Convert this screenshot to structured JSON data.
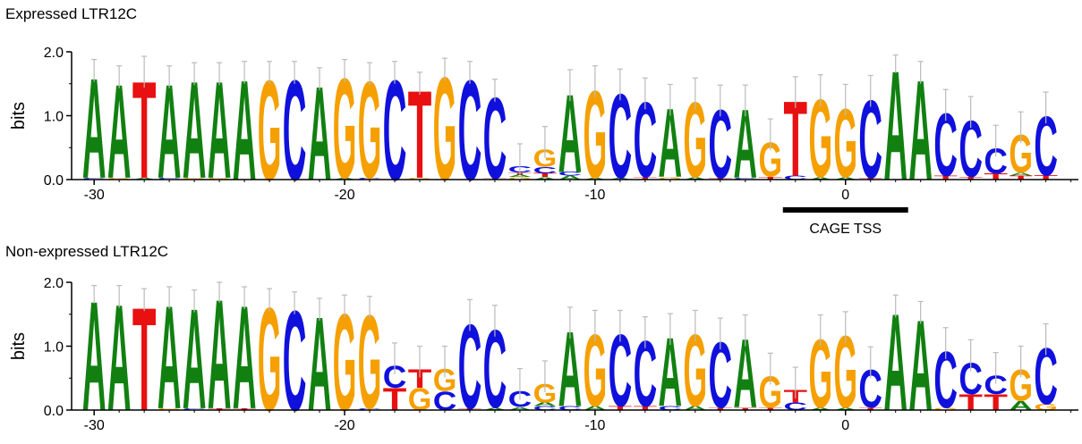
{
  "colors": {
    "A": "#118011",
    "C": "#1010dd",
    "G": "#f5a000",
    "T": "#e81010",
    "axis": "#000000",
    "errorbar": "#bbbbbb"
  },
  "chart_data": [
    {
      "type": "sequence-logo",
      "title": "Expressed LTR12C",
      "ylabel": "bits",
      "ylim": [
        0,
        2
      ],
      "yticks": [
        "0.0",
        "1.0",
        "2.0"
      ],
      "xlim": [
        -30.9,
        9.3
      ],
      "xticks": [
        -30,
        -20,
        -10,
        0
      ],
      "xtick_labels": [
        "-30",
        "-20",
        "-10",
        "0"
      ],
      "annotation": {
        "label": "CAGE TSS",
        "x_start": -2.5,
        "x_end": 2.5
      },
      "positions": [
        {
          "x": -30,
          "stack": [
            [
              "C",
              0.03
            ],
            [
              "A",
              1.6
            ]
          ],
          "err": 0.25
        },
        {
          "x": -29,
          "stack": [
            [
              "G",
              0.03
            ],
            [
              "A",
              1.5
            ]
          ],
          "err": 0.25
        },
        {
          "x": -28,
          "stack": [
            [
              "A",
              0.03
            ],
            [
              "T",
              1.55
            ]
          ],
          "err": 0.35
        },
        {
          "x": -27,
          "stack": [
            [
              "C",
              0.03
            ],
            [
              "A",
              1.5
            ]
          ],
          "err": 0.25
        },
        {
          "x": -26,
          "stack": [
            [
              "G",
              0.03
            ],
            [
              "A",
              1.55
            ]
          ],
          "err": 0.25
        },
        {
          "x": -25,
          "stack": [
            [
              "G",
              0.03
            ],
            [
              "A",
              1.55
            ]
          ],
          "err": 0.25
        },
        {
          "x": -24,
          "stack": [
            [
              "A",
              1.6
            ]
          ],
          "err": 0.25
        },
        {
          "x": -23,
          "stack": [
            [
              "G",
              1.6
            ]
          ],
          "err": 0.25
        },
        {
          "x": -22,
          "stack": [
            [
              "C",
              1.6
            ]
          ],
          "err": 0.25
        },
        {
          "x": -21,
          "stack": [
            [
              "A",
              1.5
            ]
          ],
          "err": 0.25
        },
        {
          "x": -20,
          "stack": [
            [
              "A",
              0.03
            ],
            [
              "G",
              1.6
            ]
          ],
          "err": 0.25
        },
        {
          "x": -19,
          "stack": [
            [
              "C",
              0.03
            ],
            [
              "G",
              1.55
            ]
          ],
          "err": 0.25
        },
        {
          "x": -18,
          "stack": [
            [
              "C",
              1.6
            ]
          ],
          "err": 0.25
        },
        {
          "x": -17,
          "stack": [
            [
              "G",
              0.03
            ],
            [
              "T",
              1.4
            ]
          ],
          "err": 0.25
        },
        {
          "x": -16,
          "stack": [
            [
              "G",
              1.65
            ]
          ],
          "err": 0.25
        },
        {
          "x": -15,
          "stack": [
            [
              "C",
              1.6
            ]
          ],
          "err": 0.25
        },
        {
          "x": -14,
          "stack": [
            [
              "T",
              0.02
            ],
            [
              "C",
              1.3
            ]
          ],
          "err": 0.25
        },
        {
          "x": -13,
          "stack": [
            [
              "G",
              0.04
            ],
            [
              "A",
              0.04
            ],
            [
              "T",
              0.03
            ],
            [
              "C",
              0.1
            ]
          ],
          "err": 0.35
        },
        {
          "x": -12,
          "stack": [
            [
              "A",
              0.04
            ],
            [
              "T",
              0.06
            ],
            [
              "C",
              0.1
            ],
            [
              "G",
              0.28
            ]
          ],
          "err": 0.35
        },
        {
          "x": -11,
          "stack": [
            [
              "A",
              0.06
            ],
            [
              "C",
              0.06
            ],
            [
              "A",
              1.25
            ]
          ],
          "err": 0.35
        },
        {
          "x": -10,
          "stack": [
            [
              "A",
              0.03
            ],
            [
              "G",
              1.4
            ]
          ],
          "err": 0.35
        },
        {
          "x": -9,
          "stack": [
            [
              "A",
              0.03
            ],
            [
              "C",
              1.35
            ]
          ],
          "err": 0.35
        },
        {
          "x": -8,
          "stack": [
            [
              "T",
              0.04
            ],
            [
              "C",
              1.2
            ]
          ],
          "err": 0.35
        },
        {
          "x": -7,
          "stack": [
            [
              "G",
              0.04
            ],
            [
              "A",
              1.1
            ]
          ],
          "err": 0.35
        },
        {
          "x": -6,
          "stack": [
            [
              "A",
              0.04
            ],
            [
              "G",
              1.2
            ]
          ],
          "err": 0.35
        },
        {
          "x": -5,
          "stack": [
            [
              "T",
              0.03
            ],
            [
              "C",
              1.1
            ]
          ],
          "err": 0.35
        },
        {
          "x": -4,
          "stack": [
            [
              "C",
              0.03
            ],
            [
              "A",
              1.1
            ]
          ],
          "err": 0.35
        },
        {
          "x": -3,
          "stack": [
            [
              "T",
              0.05
            ],
            [
              "G",
              0.55
            ]
          ],
          "err": 0.35
        },
        {
          "x": -2,
          "stack": [
            [
              "C",
              0.06
            ],
            [
              "T",
              1.2
            ]
          ],
          "err": 0.35
        },
        {
          "x": -1,
          "stack": [
            [
              "A",
              0.04
            ],
            [
              "G",
              1.25
            ]
          ],
          "err": 0.35
        },
        {
          "x": 0,
          "stack": [
            [
              "A",
              0.04
            ],
            [
              "G",
              1.1
            ]
          ],
          "err": 0.35
        },
        {
          "x": 1,
          "stack": [
            [
              "T",
              0.03
            ],
            [
              "C",
              1.25
            ]
          ],
          "err": 0.35
        },
        {
          "x": 2,
          "stack": [
            [
              "A",
              1.75
            ]
          ],
          "err": 0.2
        },
        {
          "x": 3,
          "stack": [
            [
              "A",
              1.6
            ]
          ],
          "err": 0.25
        },
        {
          "x": 4,
          "stack": [
            [
              "T",
              0.06
            ],
            [
              "C",
              1.0
            ]
          ],
          "err": 0.35
        },
        {
          "x": 5,
          "stack": [
            [
              "T",
              0.05
            ],
            [
              "C",
              0.9
            ]
          ],
          "err": 0.35
        },
        {
          "x": 6,
          "stack": [
            [
              "T",
              0.1
            ],
            [
              "C",
              0.4
            ]
          ],
          "err": 0.35
        },
        {
          "x": 7,
          "stack": [
            [
              "T",
              0.06
            ],
            [
              "A",
              0.05
            ],
            [
              "G",
              0.6
            ]
          ],
          "err": 0.35
        },
        {
          "x": 8,
          "stack": [
            [
              "T",
              0.07
            ],
            [
              "C",
              0.95
            ]
          ],
          "err": 0.35
        }
      ]
    },
    {
      "type": "sequence-logo",
      "title": "Non-expressed LTR12C",
      "ylabel": "bits",
      "ylim": [
        0,
        2
      ],
      "yticks": [
        "0.0",
        "1.0",
        "2.0"
      ],
      "xlim": [
        -30.9,
        9.3
      ],
      "xticks": [
        -30,
        -20,
        -10,
        0
      ],
      "xtick_labels": [
        "-30",
        "-20",
        "-10",
        "0"
      ],
      "positions": [
        {
          "x": -30,
          "stack": [
            [
              "A",
              1.75
            ]
          ],
          "err": 0.2
        },
        {
          "x": -29,
          "stack": [
            [
              "A",
              1.7
            ]
          ],
          "err": 0.25
        },
        {
          "x": -28,
          "stack": [
            [
              "T",
              1.65
            ]
          ],
          "err": 0.25
        },
        {
          "x": -27,
          "stack": [
            [
              "G",
              0.03
            ],
            [
              "A",
              1.65
            ]
          ],
          "err": 0.25
        },
        {
          "x": -26,
          "stack": [
            [
              "C",
              0.03
            ],
            [
              "A",
              1.6
            ]
          ],
          "err": 0.25
        },
        {
          "x": -25,
          "stack": [
            [
              "T",
              0.03
            ],
            [
              "A",
              1.75
            ]
          ],
          "err": 0.25
        },
        {
          "x": -24,
          "stack": [
            [
              "T",
              0.03
            ],
            [
              "A",
              1.65
            ]
          ],
          "err": 0.25
        },
        {
          "x": -23,
          "stack": [
            [
              "G",
              1.65
            ]
          ],
          "err": 0.25
        },
        {
          "x": -22,
          "stack": [
            [
              "C",
              1.6
            ]
          ],
          "err": 0.25
        },
        {
          "x": -21,
          "stack": [
            [
              "A",
              1.5
            ]
          ],
          "err": 0.25
        },
        {
          "x": -20,
          "stack": [
            [
              "G",
              1.55
            ]
          ],
          "err": 0.25
        },
        {
          "x": -19,
          "stack": [
            [
              "C",
              0.03
            ],
            [
              "G",
              1.5
            ]
          ],
          "err": 0.25
        },
        {
          "x": -18,
          "stack": [
            [
              "T",
              0.35
            ],
            [
              "C",
              0.35
            ]
          ],
          "err": 0.35
        },
        {
          "x": -17,
          "stack": [
            [
              "G",
              0.35
            ],
            [
              "T",
              0.3
            ]
          ],
          "err": 0.35
        },
        {
          "x": -16,
          "stack": [
            [
              "C",
              0.3
            ],
            [
              "G",
              0.35
            ]
          ],
          "err": 0.35
        },
        {
          "x": -15,
          "stack": [
            [
              "T",
              0.03
            ],
            [
              "C",
              1.35
            ]
          ],
          "err": 0.35
        },
        {
          "x": -14,
          "stack": [
            [
              "A",
              0.04
            ],
            [
              "C",
              1.25
            ]
          ],
          "err": 0.35
        },
        {
          "x": -13,
          "stack": [
            [
              "A",
              0.05
            ],
            [
              "C",
              0.25
            ]
          ],
          "err": 0.35
        },
        {
          "x": -12,
          "stack": [
            [
              "C",
              0.06
            ],
            [
              "A",
              0.06
            ],
            [
              "G",
              0.3
            ]
          ],
          "err": 0.35
        },
        {
          "x": -11,
          "stack": [
            [
              "C",
              0.06
            ],
            [
              "A",
              1.2
            ]
          ],
          "err": 0.35
        },
        {
          "x": -10,
          "stack": [
            [
              "A",
              0.06
            ],
            [
              "G",
              1.15
            ]
          ],
          "err": 0.35
        },
        {
          "x": -9,
          "stack": [
            [
              "T",
              0.06
            ],
            [
              "C",
              1.15
            ]
          ],
          "err": 0.35
        },
        {
          "x": -8,
          "stack": [
            [
              "T",
              0.06
            ],
            [
              "C",
              1.05
            ]
          ],
          "err": 0.35
        },
        {
          "x": -7,
          "stack": [
            [
              "C",
              0.06
            ],
            [
              "A",
              1.1
            ]
          ],
          "err": 0.35
        },
        {
          "x": -6,
          "stack": [
            [
              "A",
              0.06
            ],
            [
              "G",
              1.15
            ]
          ],
          "err": 0.35
        },
        {
          "x": -5,
          "stack": [
            [
              "T",
              0.04
            ],
            [
              "C",
              1.05
            ]
          ],
          "err": 0.35
        },
        {
          "x": -4,
          "stack": [
            [
              "T",
              0.04
            ],
            [
              "A",
              1.1
            ]
          ],
          "err": 0.35
        },
        {
          "x": -3,
          "stack": [
            [
              "T",
              0.04
            ],
            [
              "G",
              0.5
            ]
          ],
          "err": 0.35
        },
        {
          "x": -2,
          "stack": [
            [
              "C",
              0.12
            ],
            [
              "T",
              0.2
            ]
          ],
          "err": 0.35
        },
        {
          "x": -1,
          "stack": [
            [
              "A",
              0.04
            ],
            [
              "G",
              1.1
            ]
          ],
          "err": 0.35
        },
        {
          "x": 0,
          "stack": [
            [
              "A",
              0.04
            ],
            [
              "G",
              1.15
            ]
          ],
          "err": 0.35
        },
        {
          "x": 1,
          "stack": [
            [
              "T",
              0.04
            ],
            [
              "C",
              0.6
            ]
          ],
          "err": 0.35
        },
        {
          "x": 2,
          "stack": [
            [
              "A",
              1.55
            ]
          ],
          "err": 0.25
        },
        {
          "x": 3,
          "stack": [
            [
              "A",
              1.45
            ]
          ],
          "err": 0.25
        },
        {
          "x": 4,
          "stack": [
            [
              "G",
              0.04
            ],
            [
              "C",
              0.9
            ]
          ],
          "err": 0.35
        },
        {
          "x": 5,
          "stack": [
            [
              "T",
              0.25
            ],
            [
              "C",
              0.5
            ]
          ],
          "err": 0.35
        },
        {
          "x": 6,
          "stack": [
            [
              "T",
              0.25
            ],
            [
              "C",
              0.3
            ]
          ],
          "err": 0.35
        },
        {
          "x": 7,
          "stack": [
            [
              "A",
              0.15
            ],
            [
              "G",
              0.5
            ]
          ],
          "err": 0.35
        },
        {
          "x": 8,
          "stack": [
            [
              "G",
              0.1
            ],
            [
              "C",
              0.9
            ]
          ],
          "err": 0.35
        }
      ]
    }
  ]
}
